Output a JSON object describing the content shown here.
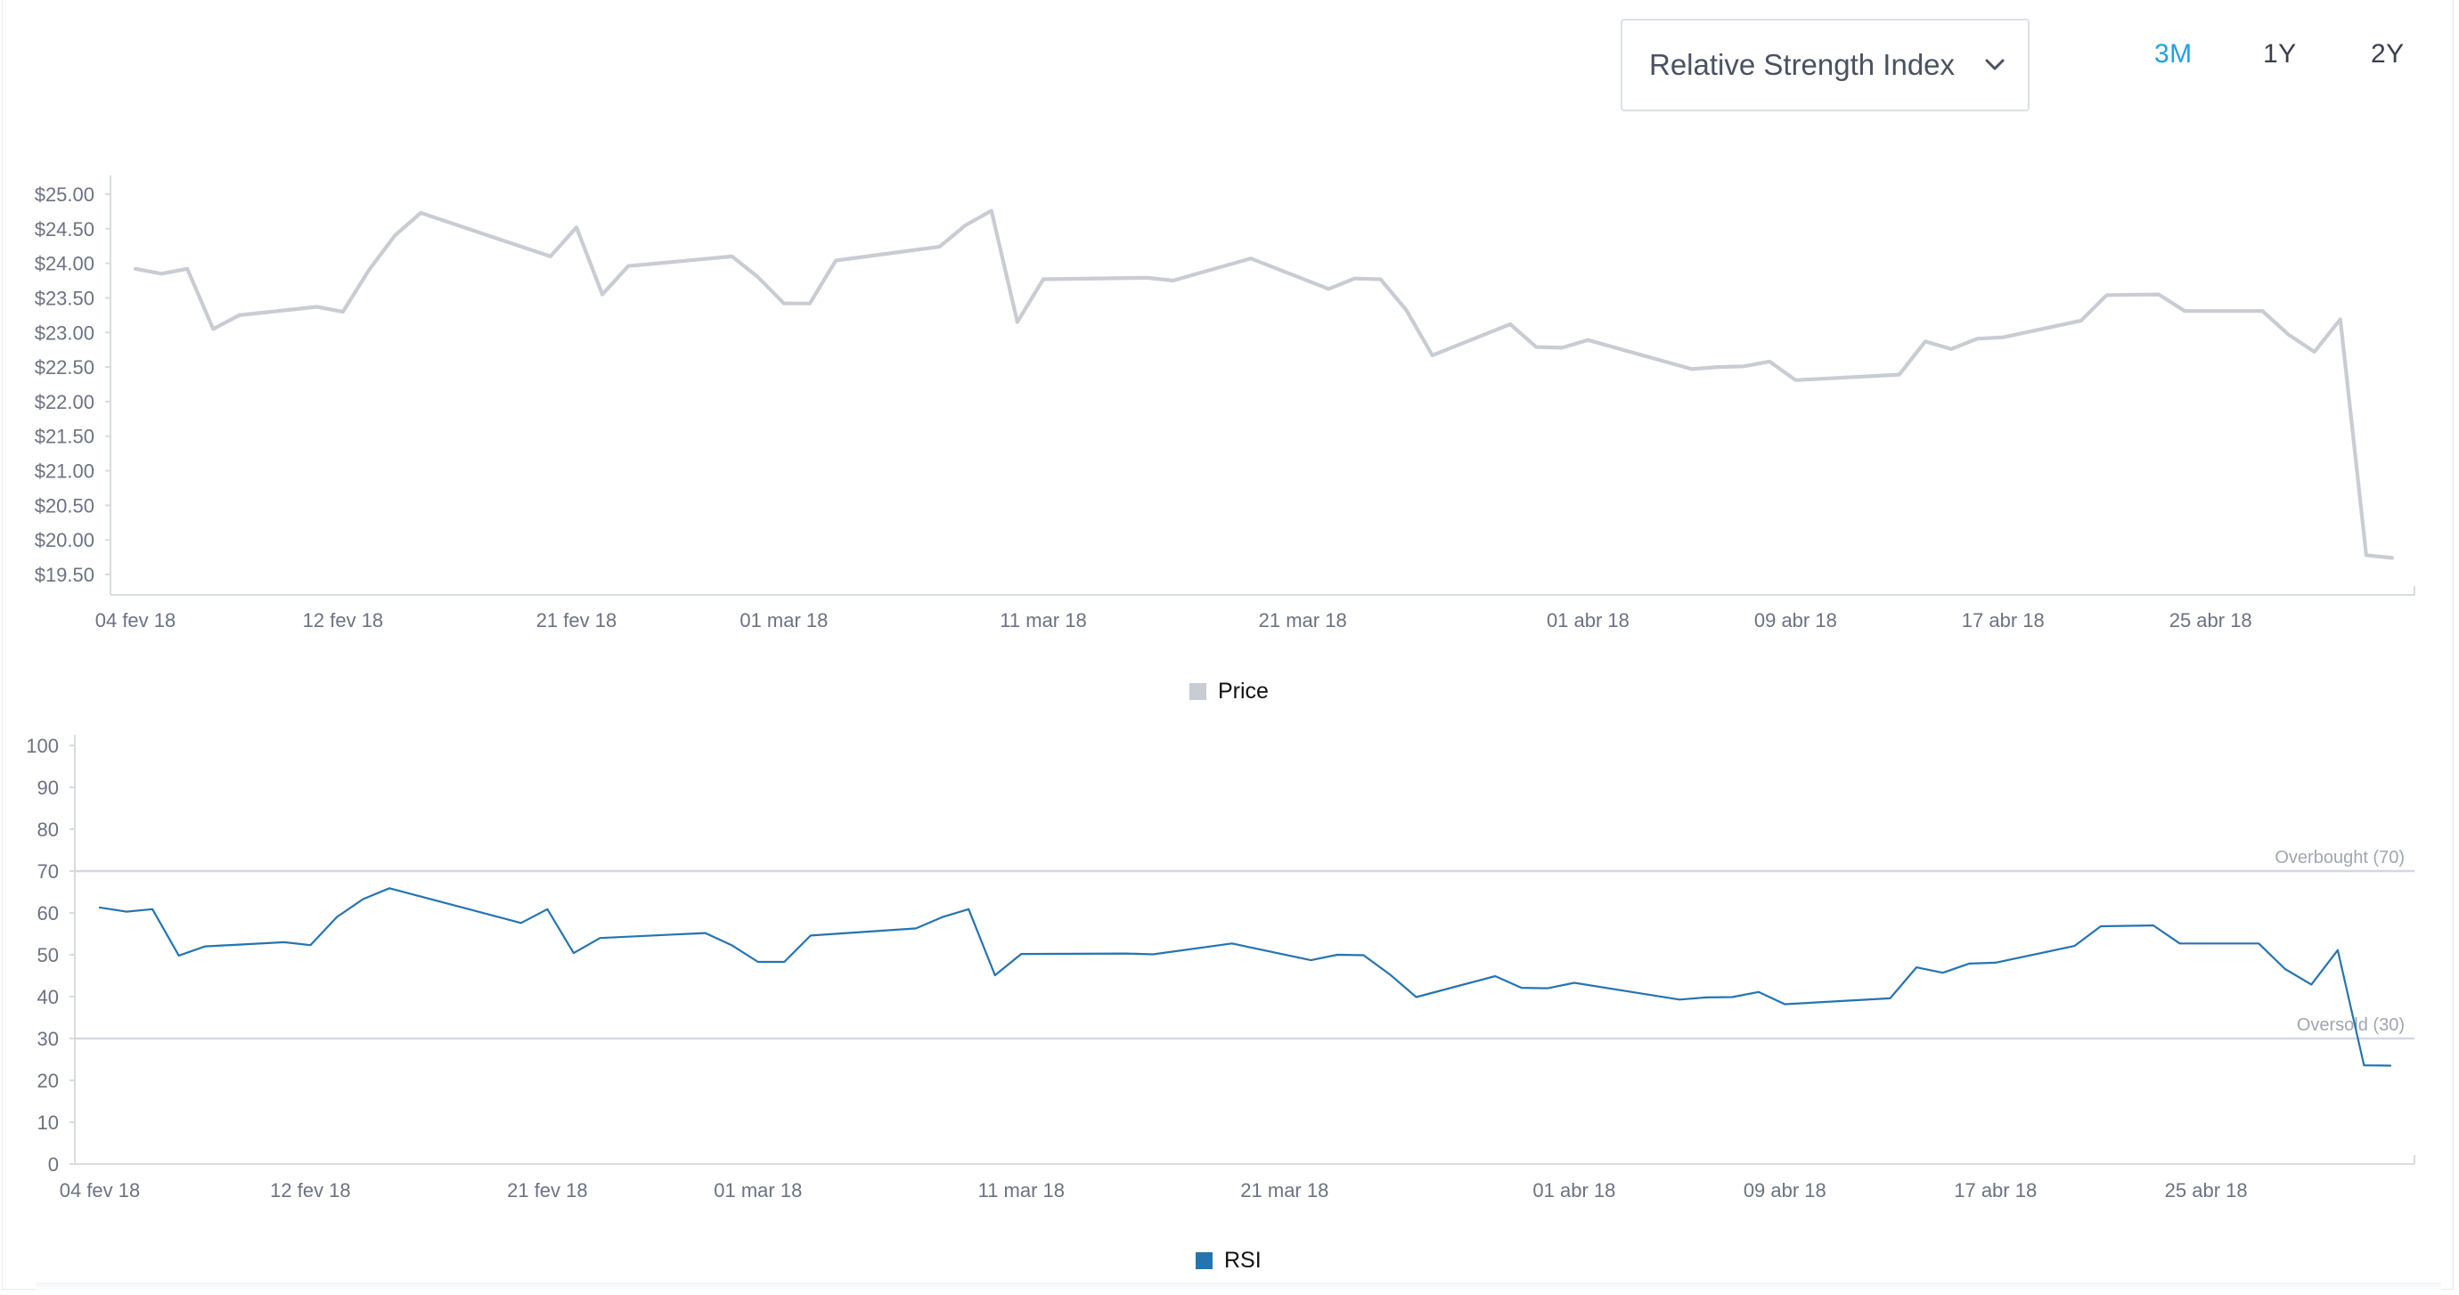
{
  "controls": {
    "indicator_label": "Relative Strength Index",
    "ranges": [
      "3M",
      "1Y",
      "2Y"
    ],
    "active_range": "3M"
  },
  "colors": {
    "price_line": "#c8ccd3",
    "rsi_line": "#2574b0",
    "active_range": "#1fa2df",
    "reference_line": "#d4d8e3"
  },
  "chart_data": [
    {
      "type": "line",
      "legend": "Price",
      "y_ticks": [
        "$25.00",
        "$24.50",
        "$24.00",
        "$23.50",
        "$23.00",
        "$22.50",
        "$22.00",
        "$21.50",
        "$21.00",
        "$20.50",
        "$20.00",
        "$19.50"
      ],
      "ylim": [
        19.5,
        25.0
      ],
      "x_labels": [
        "04 fev 18",
        "12 fev 18",
        "21 fev 18",
        "01 mar 18",
        "11 mar 18",
        "21 mar 18",
        "01 abr 18",
        "09 abr 18",
        "17 abr 18",
        "25 abr 18"
      ],
      "series": [
        {
          "name": "Price",
          "points": [
            [
              "2018-02-04",
              23.92
            ],
            [
              "2018-02-05",
              23.85
            ],
            [
              "2018-02-06",
              23.92
            ],
            [
              "2018-02-07",
              23.05
            ],
            [
              "2018-02-08",
              23.25
            ],
            [
              "2018-02-11",
              23.37
            ],
            [
              "2018-02-12",
              23.3
            ],
            [
              "2018-02-13",
              23.9
            ],
            [
              "2018-02-14",
              24.4
            ],
            [
              "2018-02-15",
              24.73
            ],
            [
              "2018-02-20",
              24.1
            ],
            [
              "2018-02-21",
              24.52
            ],
            [
              "2018-02-22",
              23.55
            ],
            [
              "2018-02-23",
              23.96
            ],
            [
              "2018-02-27",
              24.1
            ],
            [
              "2018-02-28",
              23.8
            ],
            [
              "2018-03-01",
              23.42
            ],
            [
              "2018-03-02",
              23.42
            ],
            [
              "2018-03-03",
              24.04
            ],
            [
              "2018-03-07",
              24.24
            ],
            [
              "2018-03-08",
              24.55
            ],
            [
              "2018-03-09",
              24.76
            ],
            [
              "2018-03-10",
              23.15
            ],
            [
              "2018-03-11",
              23.77
            ],
            [
              "2018-03-15",
              23.79
            ],
            [
              "2018-03-16",
              23.75
            ],
            [
              "2018-03-19",
              24.07
            ],
            [
              "2018-03-22",
              23.63
            ],
            [
              "2018-03-23",
              23.78
            ],
            [
              "2018-03-24",
              23.77
            ],
            [
              "2018-03-25",
              23.32
            ],
            [
              "2018-03-26",
              22.67
            ],
            [
              "2018-03-29",
              23.12
            ],
            [
              "2018-03-30",
              22.79
            ],
            [
              "2018-03-31",
              22.78
            ],
            [
              "2018-04-01",
              22.89
            ],
            [
              "2018-04-05",
              22.47
            ],
            [
              "2018-04-06",
              22.5
            ],
            [
              "2018-04-07",
              22.51
            ],
            [
              "2018-04-08",
              22.58
            ],
            [
              "2018-04-09",
              22.31
            ],
            [
              "2018-04-13",
              22.39
            ],
            [
              "2018-04-14",
              22.87
            ],
            [
              "2018-04-15",
              22.76
            ],
            [
              "2018-04-16",
              22.91
            ],
            [
              "2018-04-17",
              22.93
            ],
            [
              "2018-04-20",
              23.17
            ],
            [
              "2018-04-21",
              23.54
            ],
            [
              "2018-04-23",
              23.55
            ],
            [
              "2018-04-24",
              23.31
            ],
            [
              "2018-04-27",
              23.31
            ],
            [
              "2018-04-28",
              22.97
            ],
            [
              "2018-04-29",
              22.72
            ],
            [
              "2018-04-30",
              23.19
            ],
            [
              "2018-05-01",
              19.78
            ],
            [
              "2018-05-02",
              19.74
            ]
          ]
        }
      ]
    },
    {
      "type": "line",
      "legend": "RSI",
      "y_ticks": [
        "100",
        "90",
        "80",
        "70",
        "60",
        "50",
        "40",
        "30",
        "20",
        "10",
        "0"
      ],
      "ylim": [
        0,
        100
      ],
      "x_labels": [
        "04 fev 18",
        "12 fev 18",
        "21 fev 18",
        "01 mar 18",
        "11 mar 18",
        "21 mar 18",
        "01 abr 18",
        "09 abr 18",
        "17 abr 18",
        "25 abr 18"
      ],
      "reference_lines": [
        {
          "label": "Overbought (70)",
          "value": 70
        },
        {
          "label": "Oversold (30)",
          "value": 30
        }
      ],
      "series": [
        {
          "name": "RSI",
          "points": [
            [
              "2018-02-04",
              61.3
            ],
            [
              "2018-02-05",
              60.3
            ],
            [
              "2018-02-06",
              60.9
            ],
            [
              "2018-02-07",
              49.8
            ],
            [
              "2018-02-08",
              52.0
            ],
            [
              "2018-02-11",
              53.0
            ],
            [
              "2018-02-12",
              52.3
            ],
            [
              "2018-02-13",
              59.0
            ],
            [
              "2018-02-14",
              63.3
            ],
            [
              "2018-02-15",
              65.9
            ],
            [
              "2018-02-20",
              57.6
            ],
            [
              "2018-02-21",
              60.9
            ],
            [
              "2018-02-22",
              50.4
            ],
            [
              "2018-02-23",
              54.0
            ],
            [
              "2018-02-27",
              55.2
            ],
            [
              "2018-02-28",
              52.3
            ],
            [
              "2018-03-01",
              48.3
            ],
            [
              "2018-03-02",
              48.3
            ],
            [
              "2018-03-03",
              54.6
            ],
            [
              "2018-03-07",
              56.3
            ],
            [
              "2018-03-08",
              59.0
            ],
            [
              "2018-03-09",
              60.9
            ],
            [
              "2018-03-10",
              45.1
            ],
            [
              "2018-03-11",
              50.2
            ],
            [
              "2018-03-15",
              50.3
            ],
            [
              "2018-03-16",
              50.1
            ],
            [
              "2018-03-19",
              52.7
            ],
            [
              "2018-03-22",
              48.7
            ],
            [
              "2018-03-23",
              50.0
            ],
            [
              "2018-03-24",
              49.9
            ],
            [
              "2018-03-25",
              45.3
            ],
            [
              "2018-03-26",
              39.9
            ],
            [
              "2018-03-29",
              44.9
            ],
            [
              "2018-03-30",
              42.1
            ],
            [
              "2018-03-31",
              42.0
            ],
            [
              "2018-04-01",
              43.3
            ],
            [
              "2018-04-05",
              39.3
            ],
            [
              "2018-04-06",
              39.8
            ],
            [
              "2018-04-07",
              39.9
            ],
            [
              "2018-04-08",
              41.1
            ],
            [
              "2018-04-09",
              38.2
            ],
            [
              "2018-04-13",
              39.6
            ],
            [
              "2018-04-14",
              47.0
            ],
            [
              "2018-04-15",
              45.7
            ],
            [
              "2018-04-16",
              47.9
            ],
            [
              "2018-04-17",
              48.1
            ],
            [
              "2018-04-20",
              52.1
            ],
            [
              "2018-04-21",
              56.8
            ],
            [
              "2018-04-23",
              57.0
            ],
            [
              "2018-04-24",
              52.7
            ],
            [
              "2018-04-27",
              52.7
            ],
            [
              "2018-04-28",
              46.6
            ],
            [
              "2018-04-29",
              42.9
            ],
            [
              "2018-04-30",
              51.1
            ],
            [
              "2018-05-01",
              23.6
            ],
            [
              "2018-05-02",
              23.5
            ]
          ]
        }
      ]
    }
  ]
}
